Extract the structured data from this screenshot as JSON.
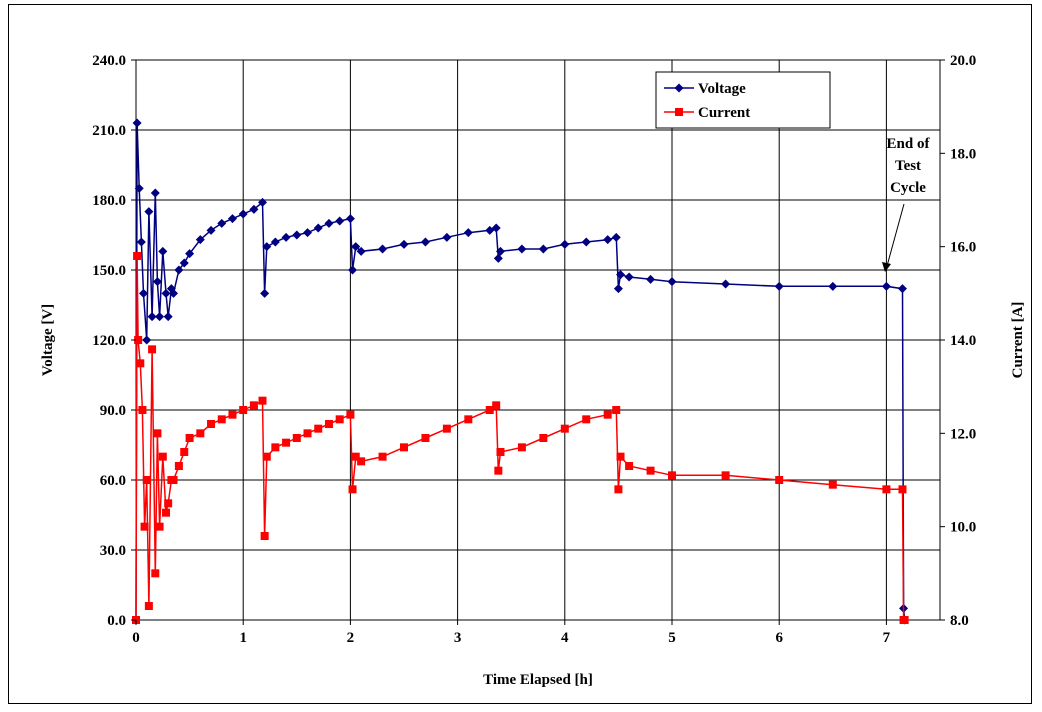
{
  "chart_data": {
    "type": "line",
    "title": "",
    "xlabel": "Time Elapsed [h]",
    "ylabel": "Voltage [V]",
    "y2label": "Current [A]",
    "xlim": [
      0,
      7.5
    ],
    "ylim": [
      0,
      240
    ],
    "y2lim": [
      8,
      20
    ],
    "x_ticks": [
      "0",
      "1",
      "2",
      "3",
      "4",
      "5",
      "6",
      "7"
    ],
    "y_ticks": [
      "0.0",
      "30.0",
      "60.0",
      "90.0",
      "120.0",
      "150.0",
      "180.0",
      "210.0",
      "240.0"
    ],
    "y2_ticks": [
      "8.0",
      "10.0",
      "12.0",
      "14.0",
      "16.0",
      "18.0",
      "20.0"
    ],
    "grid": true,
    "legend_position": "top-right",
    "annotation": {
      "lines": [
        "End of",
        "Test",
        "Cycle"
      ]
    },
    "series": [
      {
        "name": "Voltage",
        "axis": "left",
        "color": "#000080",
        "marker": "diamond",
        "x": [
          0.0,
          0.01,
          0.03,
          0.05,
          0.07,
          0.1,
          0.12,
          0.15,
          0.18,
          0.2,
          0.22,
          0.25,
          0.28,
          0.3,
          0.33,
          0.35,
          0.4,
          0.45,
          0.5,
          0.6,
          0.7,
          0.8,
          0.9,
          1.0,
          1.1,
          1.18,
          1.2,
          1.22,
          1.3,
          1.4,
          1.5,
          1.6,
          1.7,
          1.8,
          1.9,
          2.0,
          2.02,
          2.05,
          2.1,
          2.3,
          2.5,
          2.7,
          2.9,
          3.1,
          3.3,
          3.36,
          3.38,
          3.4,
          3.6,
          3.8,
          4.0,
          4.2,
          4.4,
          4.48,
          4.5,
          4.52,
          4.6,
          4.8,
          5.0,
          5.5,
          6.0,
          6.5,
          7.0,
          7.15,
          7.16,
          7.17
        ],
        "values": [
          0,
          213,
          185,
          162,
          140,
          120,
          175,
          130,
          183,
          145,
          130,
          158,
          140,
          130,
          142,
          140,
          150,
          153,
          157,
          163,
          167,
          170,
          172,
          174,
          176,
          179,
          140,
          160,
          162,
          164,
          165,
          166,
          168,
          170,
          171,
          172,
          150,
          160,
          158,
          159,
          161,
          162,
          164,
          166,
          167,
          168,
          155,
          158,
          159,
          159,
          161,
          162,
          163,
          164,
          142,
          148,
          147,
          146,
          145,
          144,
          143,
          143,
          143,
          142,
          5,
          0
        ]
      },
      {
        "name": "Current",
        "axis": "right",
        "color": "#ff0000",
        "marker": "square",
        "x": [
          0.0,
          0.01,
          0.02,
          0.04,
          0.06,
          0.08,
          0.1,
          0.12,
          0.15,
          0.18,
          0.2,
          0.22,
          0.25,
          0.28,
          0.3,
          0.33,
          0.35,
          0.4,
          0.45,
          0.5,
          0.6,
          0.7,
          0.8,
          0.9,
          1.0,
          1.1,
          1.18,
          1.2,
          1.22,
          1.3,
          1.4,
          1.5,
          1.6,
          1.7,
          1.8,
          1.9,
          2.0,
          2.02,
          2.05,
          2.1,
          2.3,
          2.5,
          2.7,
          2.9,
          3.1,
          3.3,
          3.36,
          3.38,
          3.4,
          3.6,
          3.8,
          4.0,
          4.2,
          4.4,
          4.48,
          4.5,
          4.52,
          4.6,
          4.8,
          5.0,
          5.5,
          6.0,
          6.5,
          7.0,
          7.15,
          7.16,
          7.17
        ],
        "values": [
          8.0,
          15.8,
          14.0,
          13.5,
          12.5,
          10.0,
          11.0,
          8.3,
          13.8,
          9.0,
          12.0,
          10.0,
          11.5,
          10.3,
          10.5,
          11.0,
          11.0,
          11.3,
          11.6,
          11.9,
          12.0,
          12.2,
          12.3,
          12.4,
          12.5,
          12.6,
          12.7,
          9.8,
          11.5,
          11.7,
          11.8,
          11.9,
          12.0,
          12.1,
          12.2,
          12.3,
          12.4,
          10.8,
          11.5,
          11.4,
          11.5,
          11.7,
          11.9,
          12.1,
          12.3,
          12.5,
          12.6,
          11.2,
          11.6,
          11.7,
          11.9,
          12.1,
          12.3,
          12.4,
          12.5,
          10.8,
          11.5,
          11.3,
          11.2,
          11.1,
          11.1,
          11.0,
          10.9,
          10.8,
          10.8,
          8.0,
          8.0
        ]
      }
    ]
  }
}
